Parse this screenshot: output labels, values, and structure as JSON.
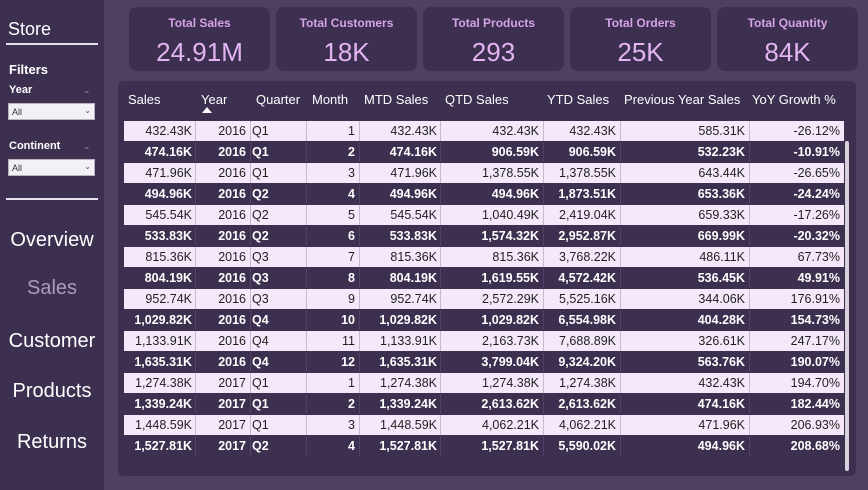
{
  "sidebar": {
    "title": "Store",
    "filters_title": "Filters",
    "year": {
      "label": "Year",
      "value": "All"
    },
    "continent": {
      "label": "Continent",
      "value": "All"
    },
    "nav": [
      "Overview",
      "Sales",
      "Customer",
      "Products",
      "Returns"
    ],
    "active": "Sales"
  },
  "kpis": [
    {
      "title": "Total Sales",
      "value": "24.91M"
    },
    {
      "title": "Total Customers",
      "value": "18K"
    },
    {
      "title": "Total Products",
      "value": "293"
    },
    {
      "title": "Total Orders",
      "value": "25K"
    },
    {
      "title": "Total Quantity",
      "value": "84K"
    }
  ],
  "table": {
    "columns": [
      "Sales",
      "Year",
      "Quarter",
      "Month",
      "MTD Sales",
      "QTD Sales",
      "YTD Sales",
      "Previous Year Sales",
      "YoY Growth %"
    ],
    "rows": [
      [
        "432.43K",
        "2016",
        "Q1",
        "1",
        "432.43K",
        "432.43K",
        "432.43K",
        "585.31K",
        "-26.12%"
      ],
      [
        "474.16K",
        "2016",
        "Q1",
        "2",
        "474.16K",
        "906.59K",
        "906.59K",
        "532.23K",
        "-10.91%"
      ],
      [
        "471.96K",
        "2016",
        "Q1",
        "3",
        "471.96K",
        "1,378.55K",
        "1,378.55K",
        "643.44K",
        "-26.65%"
      ],
      [
        "494.96K",
        "2016",
        "Q2",
        "4",
        "494.96K",
        "494.96K",
        "1,873.51K",
        "653.36K",
        "-24.24%"
      ],
      [
        "545.54K",
        "2016",
        "Q2",
        "5",
        "545.54K",
        "1,040.49K",
        "2,419.04K",
        "659.33K",
        "-17.26%"
      ],
      [
        "533.83K",
        "2016",
        "Q2",
        "6",
        "533.83K",
        "1,574.32K",
        "2,952.87K",
        "669.99K",
        "-20.32%"
      ],
      [
        "815.36K",
        "2016",
        "Q3",
        "7",
        "815.36K",
        "815.36K",
        "3,768.22K",
        "486.11K",
        "67.73%"
      ],
      [
        "804.19K",
        "2016",
        "Q3",
        "8",
        "804.19K",
        "1,619.55K",
        "4,572.42K",
        "536.45K",
        "49.91%"
      ],
      [
        "952.74K",
        "2016",
        "Q3",
        "9",
        "952.74K",
        "2,572.29K",
        "5,525.16K",
        "344.06K",
        "176.91%"
      ],
      [
        "1,029.82K",
        "2016",
        "Q4",
        "10",
        "1,029.82K",
        "1,029.82K",
        "6,554.98K",
        "404.28K",
        "154.73%"
      ],
      [
        "1,133.91K",
        "2016",
        "Q4",
        "11",
        "1,133.91K",
        "2,163.73K",
        "7,688.89K",
        "326.61K",
        "247.17%"
      ],
      [
        "1,635.31K",
        "2016",
        "Q4",
        "12",
        "1,635.31K",
        "3,799.04K",
        "9,324.20K",
        "563.76K",
        "190.07%"
      ],
      [
        "1,274.38K",
        "2017",
        "Q1",
        "1",
        "1,274.38K",
        "1,274.38K",
        "1,274.38K",
        "432.43K",
        "194.70%"
      ],
      [
        "1,339.24K",
        "2017",
        "Q1",
        "2",
        "1,339.24K",
        "2,613.62K",
        "2,613.62K",
        "474.16K",
        "182.44%"
      ],
      [
        "1,448.59K",
        "2017",
        "Q1",
        "3",
        "1,448.59K",
        "4,062.21K",
        "4,062.21K",
        "471.96K",
        "206.93%"
      ],
      [
        "1,527.81K",
        "2017",
        "Q2",
        "4",
        "1,527.81K",
        "1,527.81K",
        "5,590.02K",
        "494.96K",
        "208.68%"
      ]
    ]
  }
}
